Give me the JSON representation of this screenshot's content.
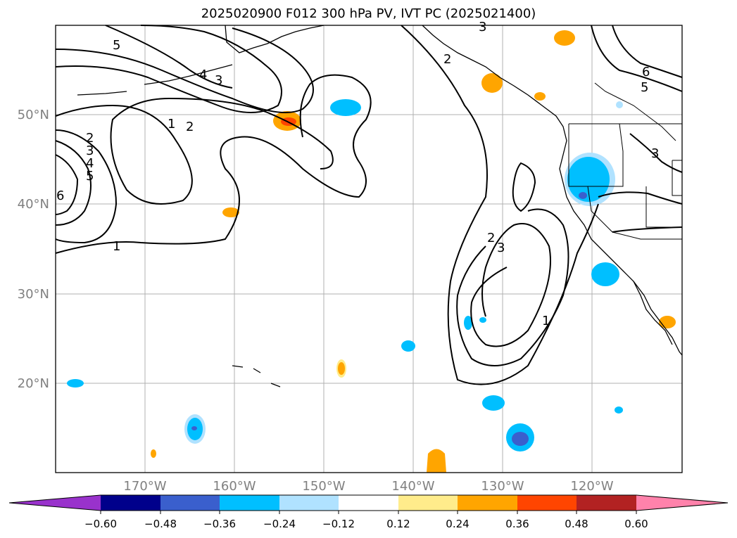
{
  "title": "2025020900 F012 300 hPa PV, IVT PC (2025021400)",
  "map": {
    "lat_labels": [
      "50°N",
      "40°N",
      "30°N",
      "20°N"
    ],
    "lon_labels": [
      "170°W",
      "160°W",
      "150°W",
      "140°W",
      "130°W",
      "120°W"
    ],
    "contour_labels": [
      "5",
      "4",
      "3",
      "2",
      "1",
      "6",
      "2",
      "3",
      "4",
      "5",
      "1",
      "2",
      "3",
      "1",
      "2",
      "3",
      "5",
      "6",
      "3"
    ],
    "gridlines": true
  },
  "colorbar": {
    "ticks": [
      "−0.60",
      "−0.48",
      "−0.36",
      "−0.24",
      "−0.12",
      "0.12",
      "0.24",
      "0.36",
      "0.48",
      "0.60"
    ],
    "colors": [
      "#9932cc",
      "#00008b",
      "#3a5fcd",
      "#00bfff",
      "#b0e2ff",
      "#ffffff",
      "#ffec8b",
      "#ffa500",
      "#ff4500",
      "#b22222",
      "#ff82ab"
    ]
  }
}
